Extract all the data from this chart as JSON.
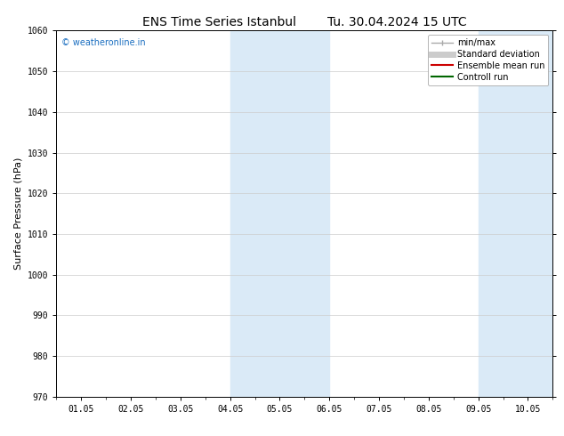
{
  "title_left": "ENS Time Series Istanbul",
  "title_right": "Tu. 30.04.2024 15 UTC",
  "ylabel": "Surface Pressure (hPa)",
  "ylim": [
    970,
    1060
  ],
  "yticks": [
    970,
    980,
    990,
    1000,
    1010,
    1020,
    1030,
    1040,
    1050,
    1060
  ],
  "xtick_labels": [
    "01.05",
    "02.05",
    "03.05",
    "04.05",
    "05.05",
    "06.05",
    "07.05",
    "08.05",
    "09.05",
    "10.05"
  ],
  "x_values": [
    0,
    1,
    2,
    3,
    4,
    5,
    6,
    7,
    8,
    9
  ],
  "shaded_regions": [
    {
      "xmin": 3.0,
      "xmax": 5.0
    },
    {
      "xmin": 8.0,
      "xmax": 10.0
    }
  ],
  "shaded_color": "#daeaf7",
  "watermark_text": "© weatheronline.in",
  "watermark_color": "#1a6ec0",
  "legend_entries": [
    {
      "label": "min/max",
      "color": "#aaaaaa",
      "lw": 1.0
    },
    {
      "label": "Standard deviation",
      "color": "#cccccc",
      "lw": 5
    },
    {
      "label": "Ensemble mean run",
      "color": "#cc0000",
      "lw": 1.5
    },
    {
      "label": "Controll run",
      "color": "#006600",
      "lw": 1.5
    }
  ],
  "bg_color": "#ffffff",
  "grid_color": "#cccccc",
  "title_fontsize": 10,
  "tick_fontsize": 7,
  "ylabel_fontsize": 8,
  "watermark_fontsize": 7,
  "legend_fontsize": 7
}
